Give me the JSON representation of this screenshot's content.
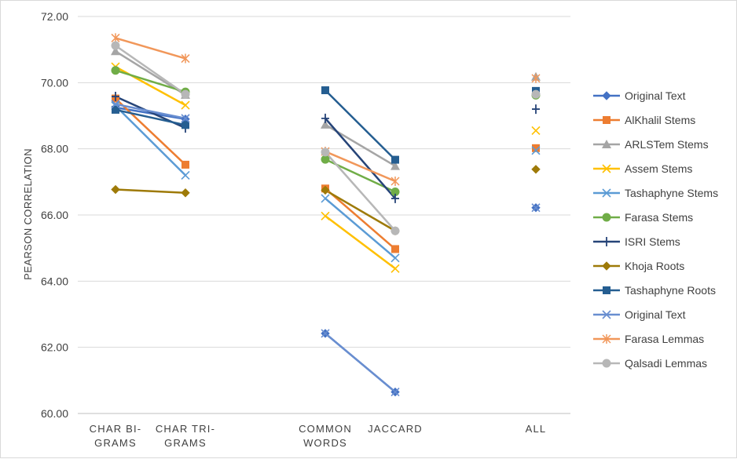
{
  "chart_data": {
    "type": "line",
    "ylabel": "PEARSON CORRELATION",
    "xlabel": "",
    "ylim": [
      60,
      72
    ],
    "yticks": [
      "60.00",
      "62.00",
      "64.00",
      "66.00",
      "68.00",
      "70.00",
      "72.00"
    ],
    "grid": "horizontal",
    "legend_position": "right",
    "categories": [
      [
        "CHAR BI-",
        "GRAMS"
      ],
      [
        "CHAR TRI-",
        "GRAMS"
      ],
      [
        "COMMON",
        "WORDS"
      ],
      [
        "JACCARD"
      ],
      [
        "ALL"
      ]
    ],
    "series": [
      {
        "name": "Original Text",
        "color": "#4472c4",
        "marker": "diamond",
        "values": [
          69.25,
          68.9,
          62.42,
          60.65,
          66.22
        ]
      },
      {
        "name": "AlKhalil Stems",
        "color": "#ed7d31",
        "marker": "square",
        "values": [
          69.52,
          67.52,
          66.8,
          64.97,
          68.02
        ]
      },
      {
        "name": "ARLSTem  Stems",
        "color": "#a5a5a5",
        "marker": "triangle",
        "values": [
          70.95,
          69.63,
          68.73,
          67.48,
          70.18
        ]
      },
      {
        "name": "Assem Stems",
        "color": "#ffc000",
        "marker": "x",
        "values": [
          70.48,
          69.32,
          65.97,
          64.38,
          68.55
        ]
      },
      {
        "name": "Tashaphyne Stems",
        "color": "#5b9bd5",
        "marker": "x",
        "values": [
          69.3,
          67.2,
          66.5,
          64.7,
          67.95
        ]
      },
      {
        "name": "Farasa Stems",
        "color": "#70ad47",
        "marker": "circle",
        "values": [
          70.37,
          69.72,
          67.68,
          66.7,
          69.62
        ]
      },
      {
        "name": "ISRI Stems",
        "color": "#264478",
        "marker": "plus",
        "values": [
          69.58,
          68.63,
          68.92,
          66.5,
          69.2
        ]
      },
      {
        "name": "Khoja Roots",
        "color": "#9e7a08",
        "marker": "diamond",
        "values": [
          66.77,
          66.67,
          66.75,
          65.52,
          67.38
        ]
      },
      {
        "name": "Tashaphyne Roots",
        "color": "#255e91",
        "marker": "square",
        "values": [
          69.18,
          68.72,
          69.77,
          67.67,
          69.75
        ]
      },
      {
        "name": "Original Text",
        "color": "#698ed0",
        "marker": "x",
        "values": [
          69.35,
          68.92,
          62.42,
          60.65,
          66.22
        ]
      },
      {
        "name": "Farasa Lemmas",
        "color": "#f1975a",
        "marker": "star",
        "values": [
          71.35,
          70.73,
          67.92,
          67.02,
          70.13
        ]
      },
      {
        "name": "Qalsadi Lemmas",
        "color": "#b7b7b7",
        "marker": "circle",
        "values": [
          71.12,
          69.65,
          67.9,
          65.52,
          69.65
        ]
      }
    ]
  }
}
